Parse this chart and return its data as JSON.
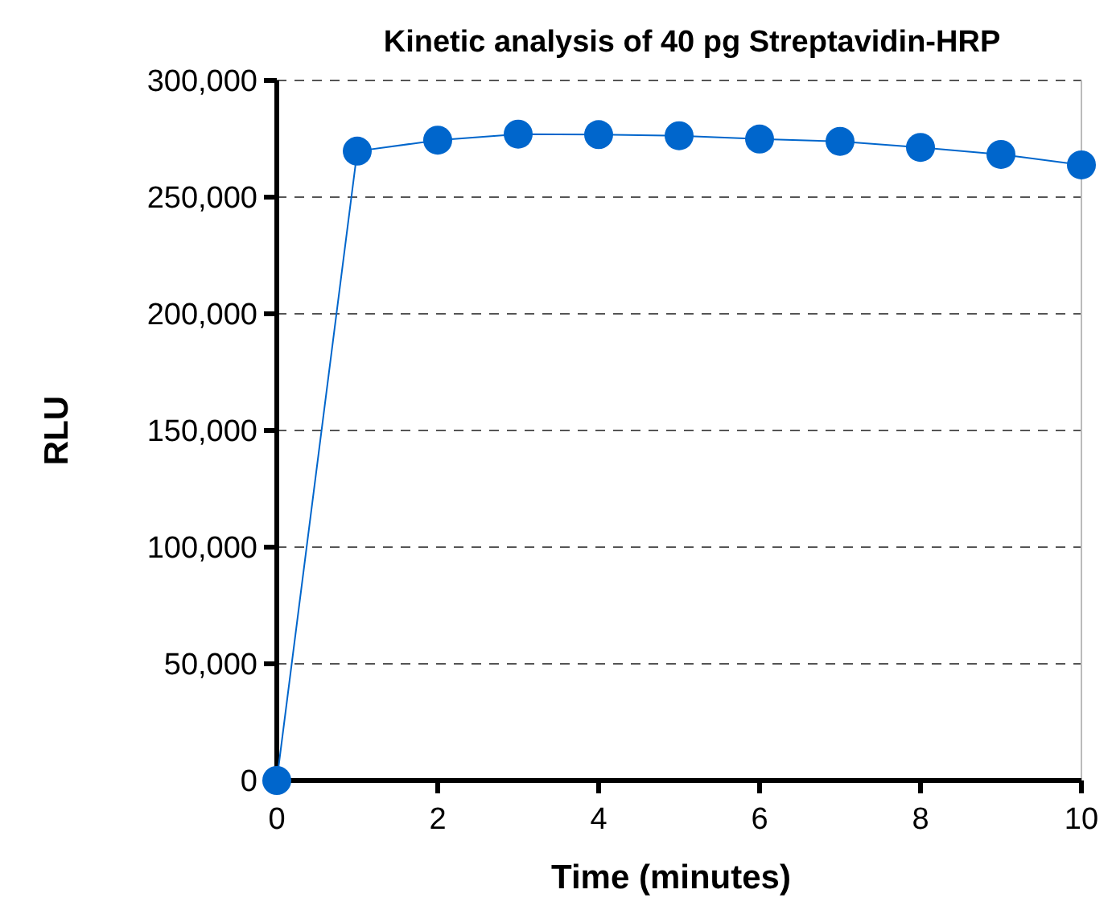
{
  "chart_data": {
    "type": "line",
    "title": "Kinetic analysis of 40 pg Streptavidin-HRP",
    "xlabel": "Time (minutes)",
    "ylabel": "RLU",
    "x": [
      0,
      1,
      2,
      3,
      4,
      5,
      6,
      7,
      8,
      9,
      10
    ],
    "series": [
      {
        "color": "#0066cc",
        "values": [
          0,
          269700,
          274400,
          277000,
          276800,
          276300,
          274900,
          273900,
          271300,
          268300,
          263800
        ]
      }
    ],
    "xlim": [
      0,
      10
    ],
    "xticks": [
      0,
      2,
      4,
      6,
      8,
      10
    ],
    "ylim": [
      0,
      300000
    ],
    "yticks": [
      {
        "value": 0,
        "label": "0"
      },
      {
        "value": 50000,
        "label": "50,000"
      },
      {
        "value": 100000,
        "label": "100,000"
      },
      {
        "value": 150000,
        "label": "150,000"
      },
      {
        "value": 200000,
        "label": "200,000"
      },
      {
        "value": 250000,
        "label": "250,000"
      },
      {
        "value": 300000,
        "label": "300,000"
      }
    ],
    "grid": "y",
    "marker": "circle",
    "line_style": "solid"
  }
}
